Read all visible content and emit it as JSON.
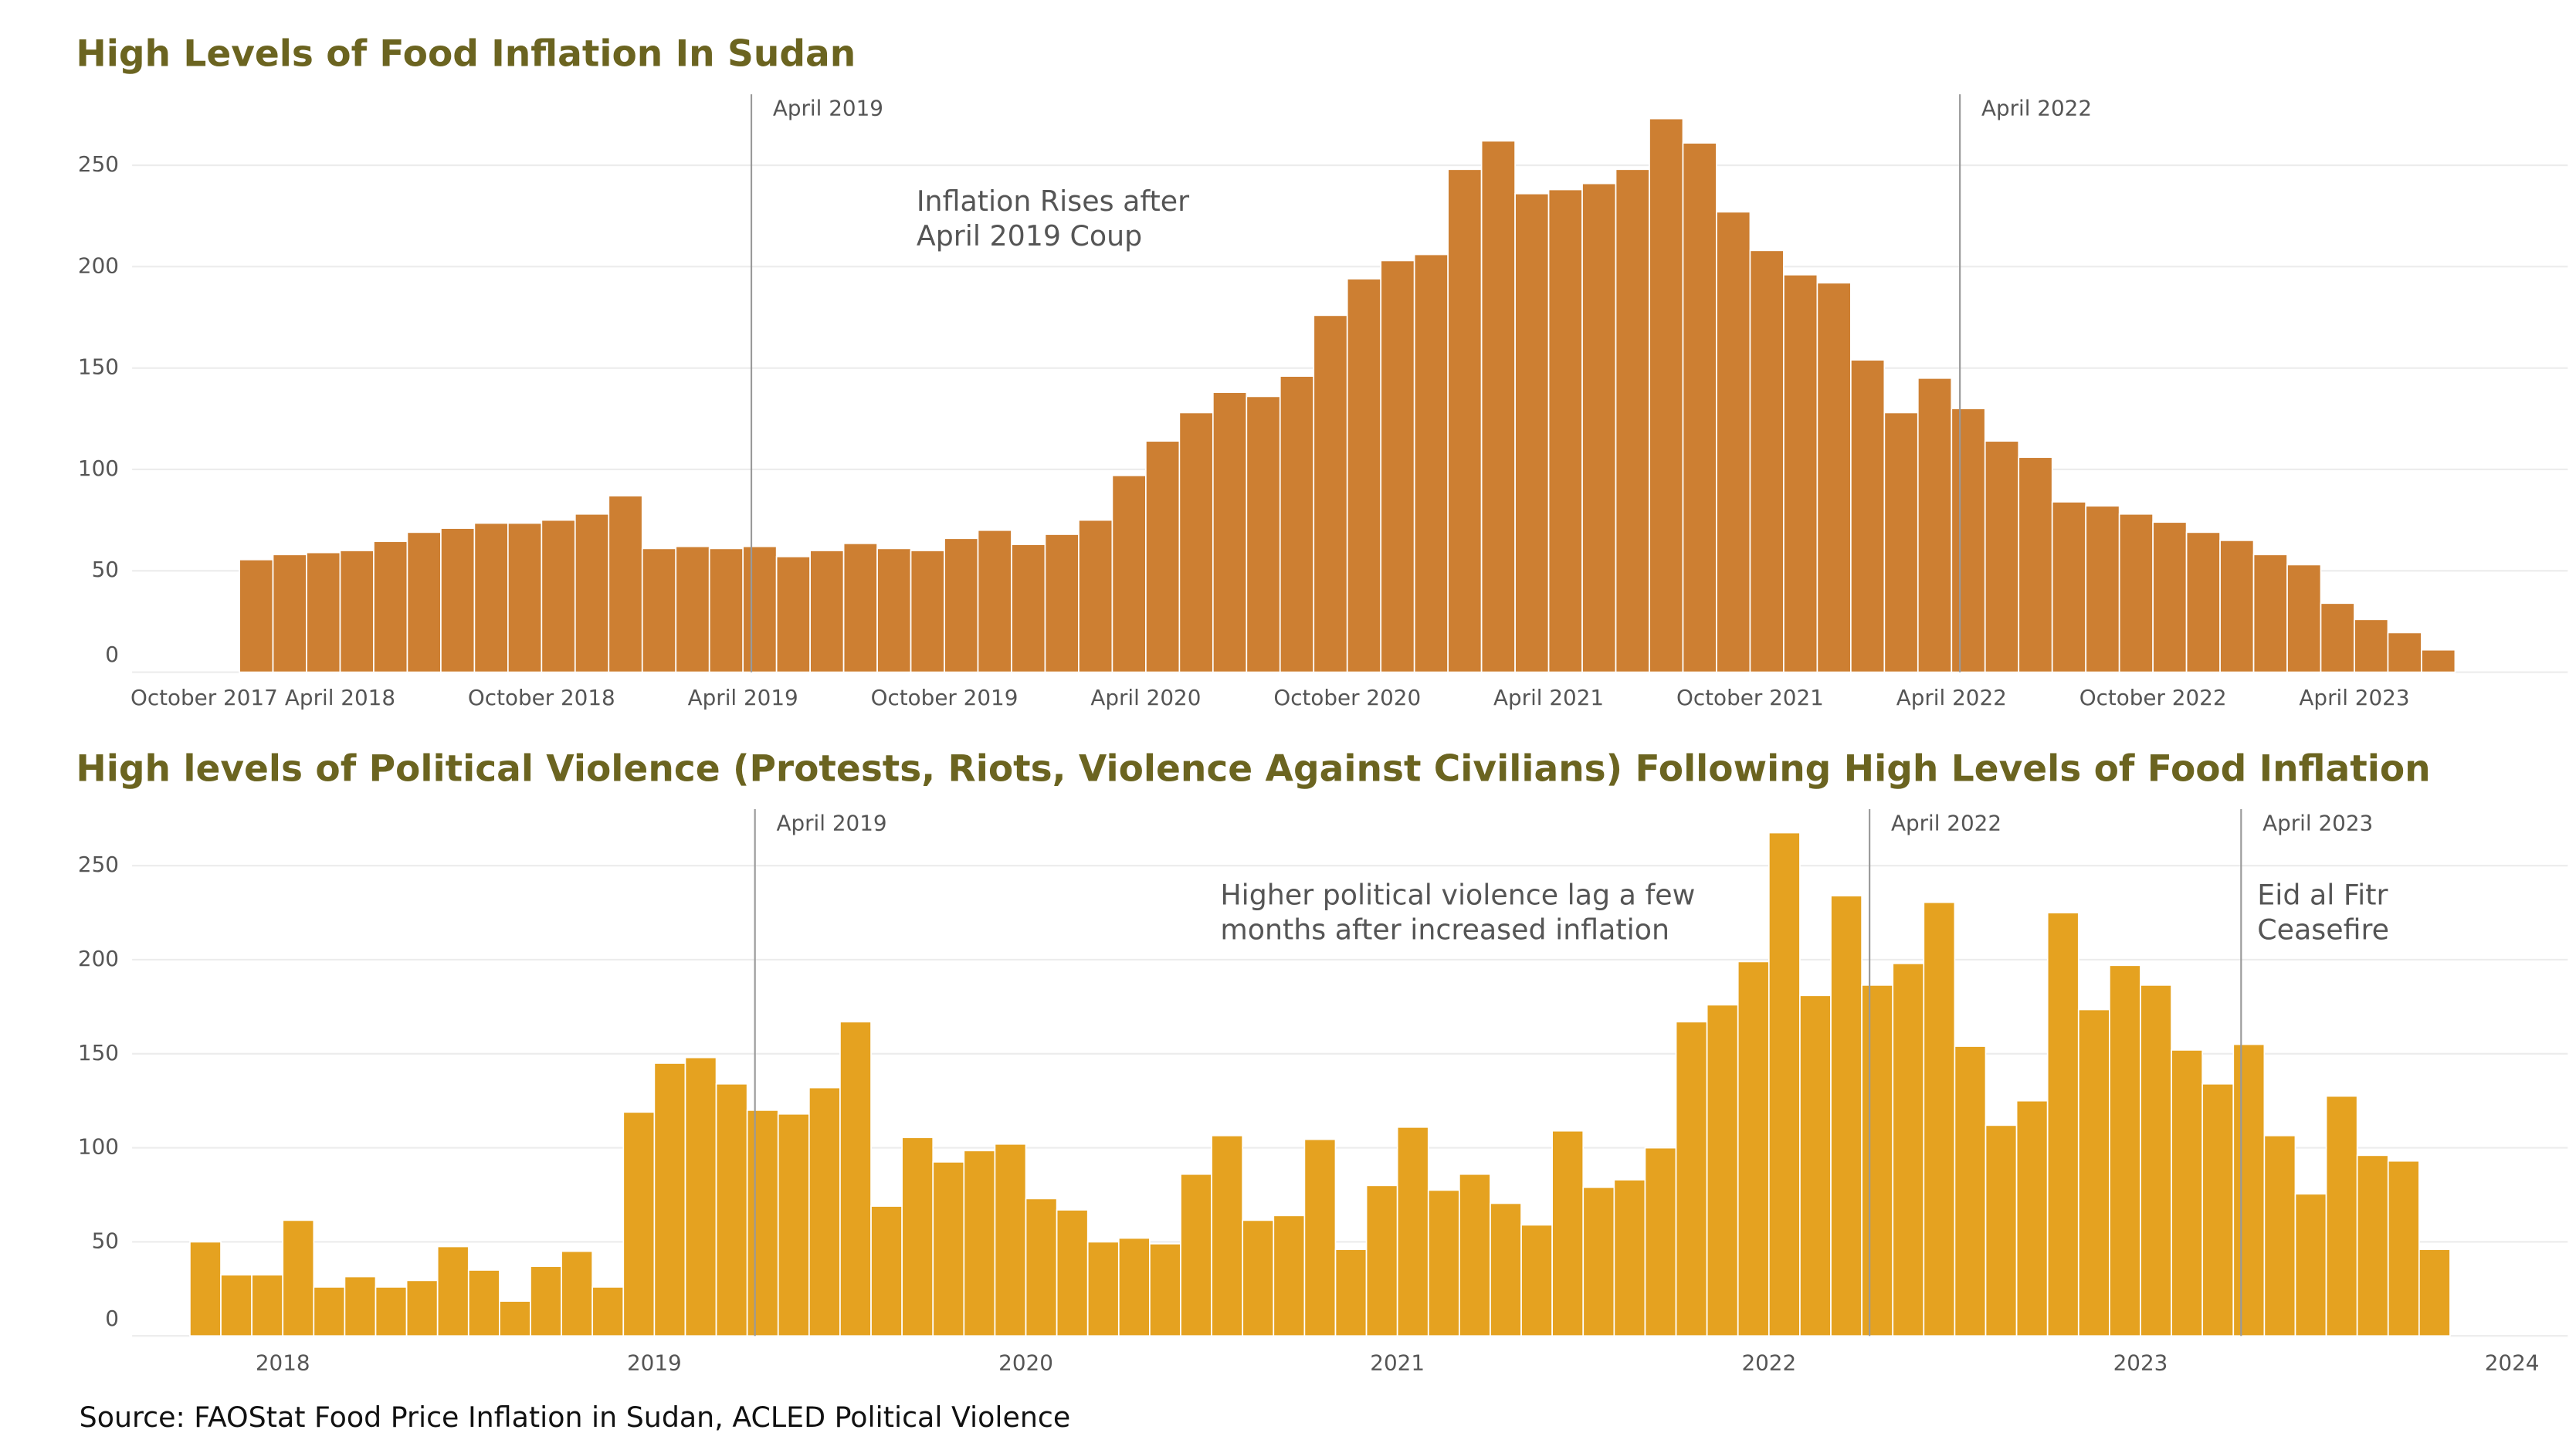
{
  "chart_data": [
    {
      "type": "bar",
      "title": "High Levels of Food Inflation In Sudan",
      "color": "#cd7f32",
      "categories": [
        "October 2017",
        null,
        null,
        null,
        null,
        null,
        "April 2018",
        null,
        null,
        null,
        null,
        null,
        "October 2018",
        null,
        null,
        null,
        null,
        null,
        "April 2019",
        null,
        null,
        null,
        null,
        null,
        "October 2019",
        null,
        null,
        null,
        null,
        null,
        "April 2020",
        null,
        null,
        null,
        null,
        null,
        "October 2020",
        null,
        null,
        null,
        null,
        null,
        "April 2021",
        null,
        null,
        null,
        null,
        null,
        "October 2021",
        null,
        null,
        null,
        null,
        null,
        "April 2022",
        null,
        null,
        null,
        null,
        null,
        "October 2022",
        null,
        null,
        null,
        null,
        null,
        "April 2023",
        null,
        null
      ],
      "values": [
        null,
        null,
        null,
        55.5,
        58,
        59,
        60,
        64.5,
        69,
        71,
        73.5,
        73.5,
        75,
        78,
        87,
        61,
        62,
        61,
        62,
        57,
        60,
        63.5,
        61,
        60,
        66,
        70,
        63,
        68,
        75,
        97,
        114,
        128,
        138,
        136,
        146,
        176,
        194,
        203,
        206,
        248,
        262,
        236,
        238,
        241,
        248,
        273,
        261,
        227,
        208,
        196,
        192,
        154,
        128,
        145,
        130,
        114,
        106,
        84,
        82,
        78,
        74,
        69,
        65,
        58,
        53,
        34,
        26,
        19.5,
        11
      ],
      "ylim": [
        0,
        285
      ],
      "yticks": [
        0,
        50,
        100,
        150,
        200,
        250
      ],
      "grid": true,
      "annotations": [
        {
          "label": "April 2019"
        },
        {
          "label": "April 2022"
        }
      ],
      "notes": [
        [
          "Inflation Rises after",
          "April 2019 Coup"
        ]
      ]
    },
    {
      "type": "bar",
      "title": "High levels of Political Violence (Protests, Riots, Violence Against Civilians) Following High Levels of Food Inflation",
      "color": "#e5a220",
      "categories": [
        null,
        null,
        null,
        "2018",
        null,
        null,
        null,
        null,
        null,
        null,
        null,
        null,
        null,
        null,
        null,
        "2019",
        null,
        null,
        null,
        null,
        null,
        null,
        null,
        null,
        null,
        null,
        null,
        "2020",
        null,
        null,
        null,
        null,
        null,
        null,
        null,
        null,
        null,
        null,
        null,
        "2021",
        null,
        null,
        null,
        null,
        null,
        null,
        null,
        null,
        null,
        null,
        null,
        "2022",
        null,
        null,
        null,
        null,
        null,
        null,
        null,
        null,
        null,
        null,
        null,
        "2023",
        null,
        null,
        null,
        null,
        null,
        null,
        null,
        null,
        null,
        null,
        null,
        "2024"
      ],
      "values": [
        50,
        32.5,
        32.5,
        61.5,
        26,
        31.5,
        26,
        29.5,
        47.5,
        35,
        18.5,
        37,
        45,
        26,
        119,
        145,
        148,
        134,
        120,
        118,
        132,
        167,
        69,
        105.5,
        92.5,
        98.5,
        102,
        73,
        67,
        50,
        52,
        49,
        86,
        106.5,
        61.5,
        64,
        104.5,
        46,
        80,
        111,
        77.5,
        86,
        70.5,
        59,
        109,
        79,
        83,
        100,
        167,
        176,
        199,
        267.5,
        181,
        234,
        186.5,
        198,
        230.5,
        154,
        112,
        125,
        225,
        173.5,
        197,
        186.5,
        152,
        134,
        155,
        106.5,
        75.5,
        127.5,
        96,
        93,
        46,
        null,
        null,
        null
      ],
      "ylim": [
        0,
        280
      ],
      "yticks": [
        0,
        50,
        100,
        150,
        200,
        250
      ],
      "grid": true,
      "annotations": [
        {
          "label": "April 2019"
        },
        {
          "label": "April 2022"
        },
        {
          "label": "April 2023"
        }
      ],
      "notes": [
        [
          "Higher political violence lag a few",
          "months after increased inflation"
        ],
        [
          "Eid al Fitr",
          "Ceasefire"
        ]
      ]
    }
  ],
  "source": "Source: FAOStat Food Price Inflation in Sudan, ACLED Political Violence"
}
